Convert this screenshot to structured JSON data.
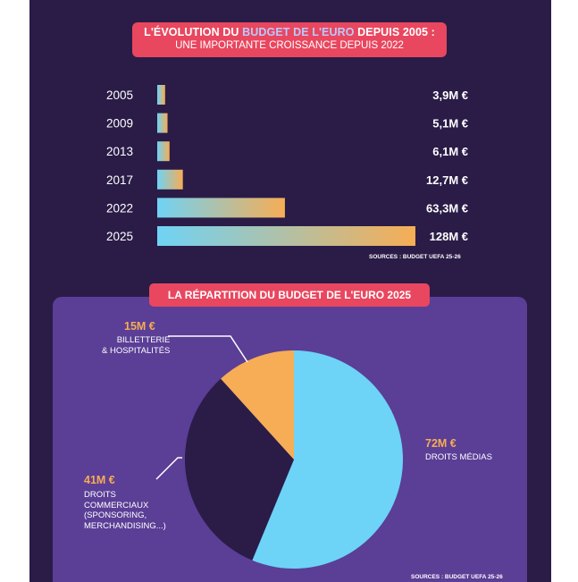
{
  "top_title": {
    "line1_a": "L'ÉVOLUTION DU ",
    "line1_hl": "BUDGET DE L'EURO",
    "line1_b": " DEPUIS 2005 :",
    "line2": "UNE IMPORTANTE CROISSANCE DEPUIS 2022"
  },
  "bottom_title": "LA RÉPARTITION DU BUDGET DE L'EURO 2025",
  "source_top": "SOURCES : BUDGET UEFA 25-26",
  "source_bottom": "SOURCES : BUDGET UEFA 25-26",
  "colors": {
    "background": "#2a1c47",
    "title_box": "#e8475f",
    "pie_card": "#5b3e96",
    "bar_gradient_start": "#6fd3f5",
    "bar_gradient_end": "#f6ad55",
    "slice_medias": "#6dd3f7",
    "slice_commerciaux": "#2a1c47",
    "slice_billetterie": "#f6ad55",
    "value_text": "#f6ad55"
  },
  "chart_data": [
    {
      "type": "bar",
      "orientation": "horizontal",
      "categories": [
        "2005",
        "2009",
        "2013",
        "2017",
        "2022",
        "2025"
      ],
      "values": [
        3.9,
        5.1,
        6.1,
        12.7,
        63.3,
        128
      ],
      "value_labels": [
        "3,9M €",
        "5,1M €",
        "6,1M €",
        "12,7M €",
        "63,3M €",
        "128M €"
      ],
      "xlim": [
        0,
        128
      ]
    },
    {
      "type": "pie",
      "slices": [
        {
          "key": "medias",
          "value": 72,
          "value_label": "72M €",
          "label_lines": [
            "DROITS MÉDIAS"
          ]
        },
        {
          "key": "commerciaux",
          "value": 41,
          "value_label": "41M €",
          "label_lines": [
            "DROITS",
            "COMMERCIAUX",
            "(SPONSORING,",
            "MERCHANDISING...)"
          ]
        },
        {
          "key": "billetterie",
          "value": 15,
          "value_label": "15M €",
          "label_lines": [
            "BILLETTERIE",
            "& HOSPITALITÉS"
          ]
        }
      ]
    }
  ]
}
